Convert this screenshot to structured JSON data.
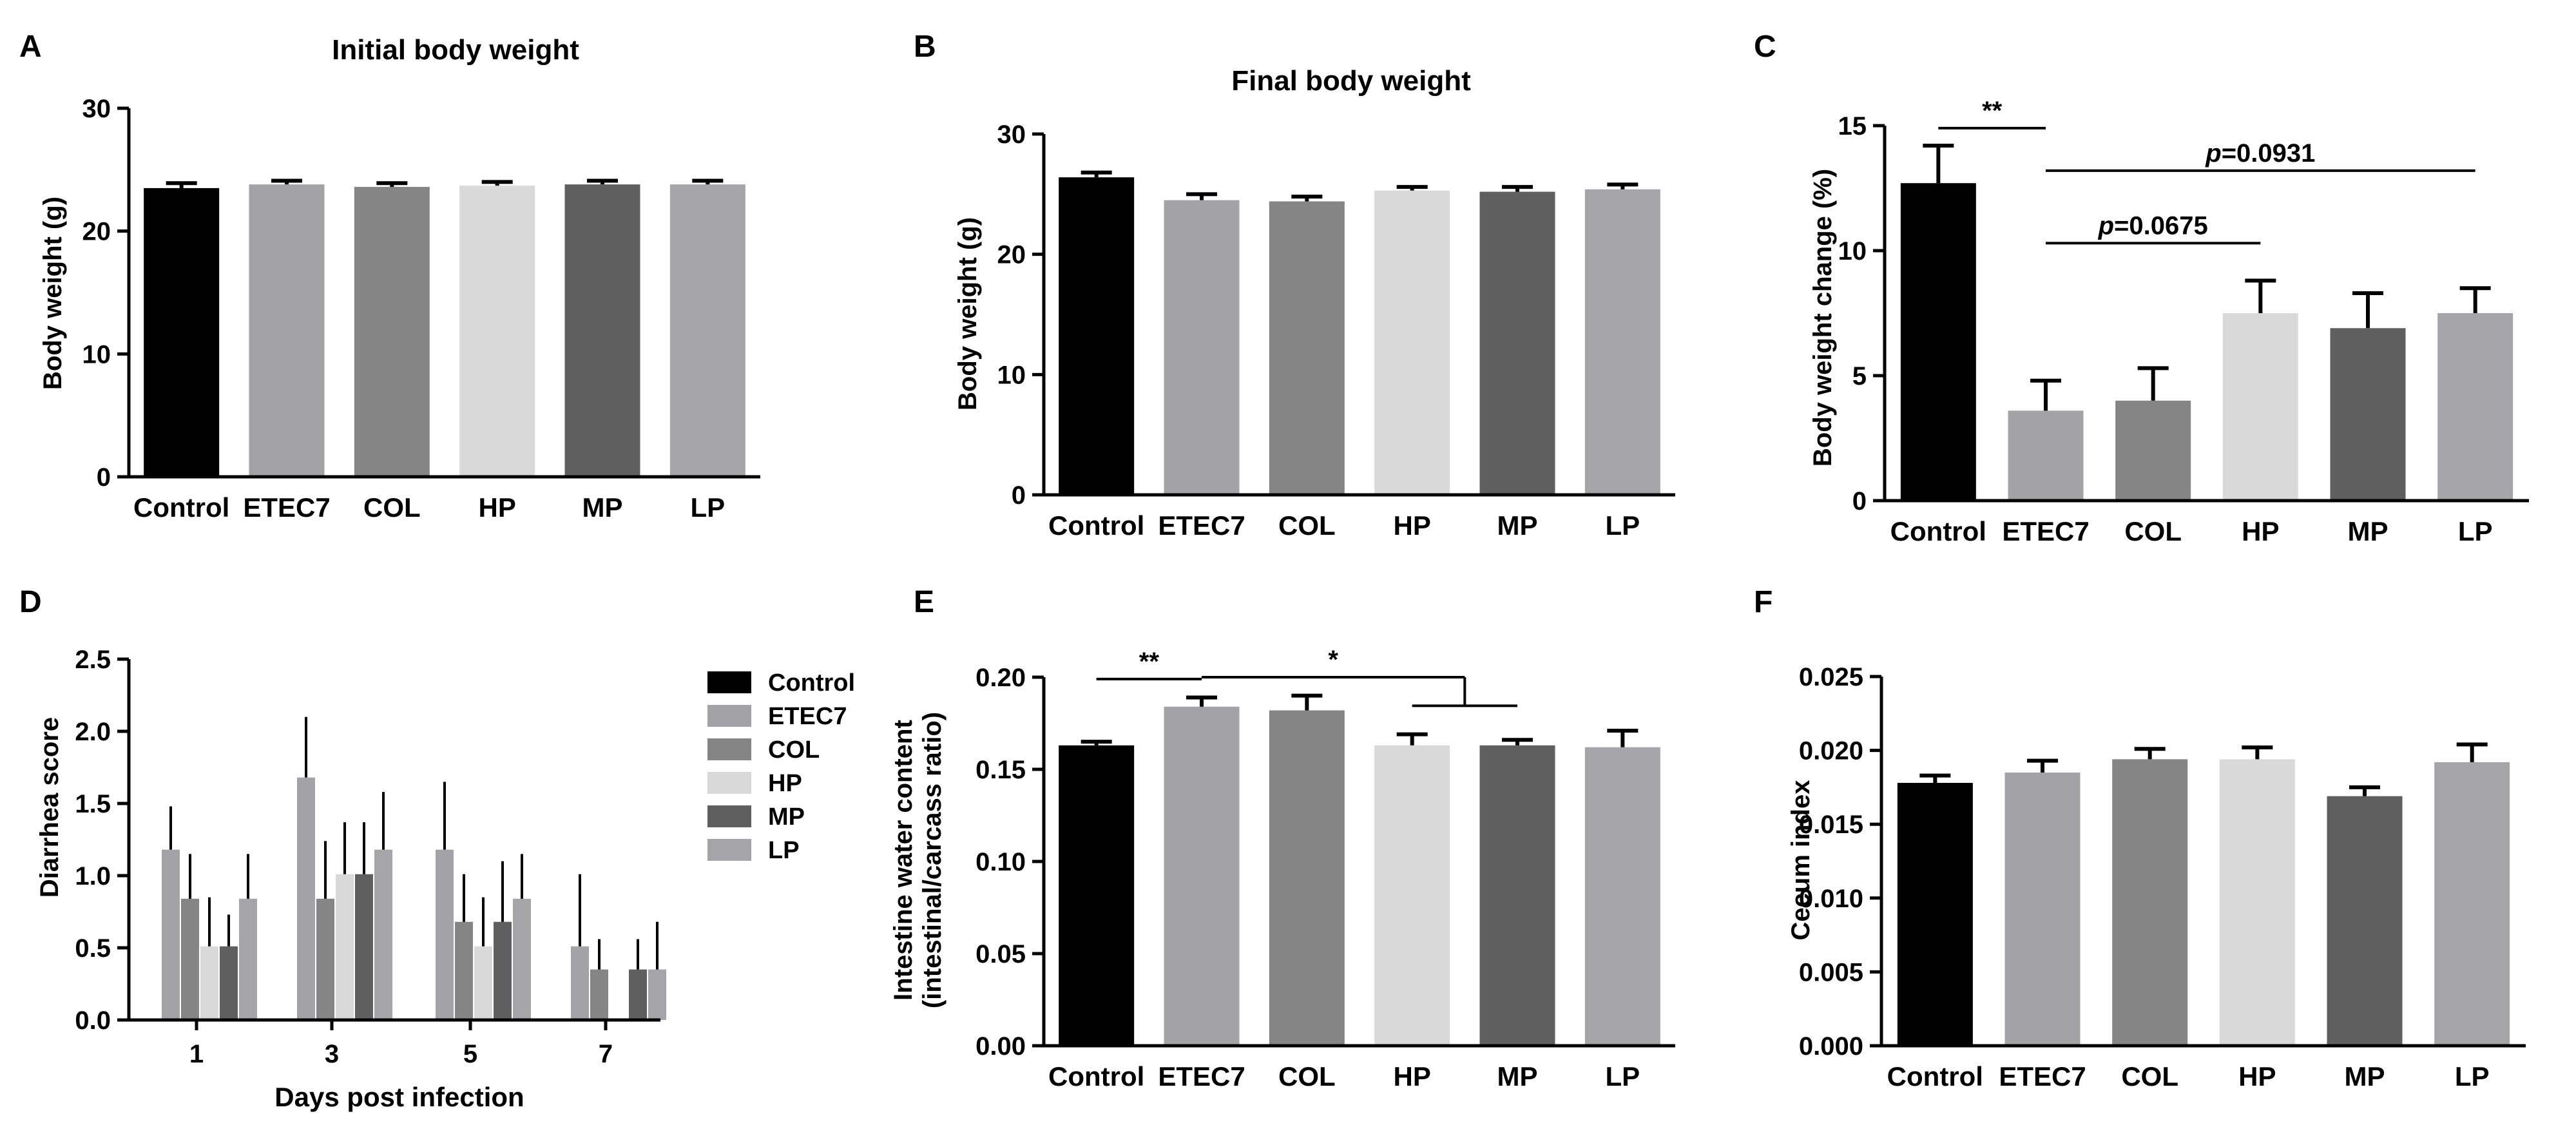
{
  "panel_letters": [
    "A",
    "B",
    "C",
    "D",
    "E",
    "F"
  ],
  "colors": {
    "Control": "#000000",
    "ETEC7": "#a3a3a7",
    "COL": "#858585",
    "HP": "#d9d9d9",
    "MP": "#5f5f5f",
    "LP": "#a5a5a9",
    "axis": "#000000"
  },
  "chart_data": [
    {
      "panel": "A",
      "type": "bar",
      "title": "Initial body weight",
      "xlabel": "",
      "ylabel": "Body weight (g)",
      "categories": [
        "Control",
        "ETEC7",
        "COL",
        "HP",
        "MP",
        "LP"
      ],
      "values": [
        23.5,
        23.8,
        23.6,
        23.7,
        23.8,
        23.8
      ],
      "errors": [
        0.4,
        0.3,
        0.3,
        0.3,
        0.3,
        0.3
      ],
      "ylim": [
        0,
        30
      ],
      "yticks": [
        0,
        10,
        20,
        30
      ],
      "ytick_labels": [
        "0",
        "10",
        "20",
        "30"
      ],
      "annotations": []
    },
    {
      "panel": "B",
      "type": "bar",
      "title": "Final body weight",
      "xlabel": "",
      "ylabel": "Body weight (g)",
      "categories": [
        "Control",
        "ETEC7",
        "COL",
        "HP",
        "MP",
        "LP"
      ],
      "values": [
        26.4,
        24.5,
        24.4,
        25.3,
        25.2,
        25.4
      ],
      "errors": [
        0.4,
        0.5,
        0.4,
        0.3,
        0.4,
        0.4
      ],
      "ylim": [
        0,
        30
      ],
      "yticks": [
        0,
        10,
        20,
        30
      ],
      "ytick_labels": [
        "0",
        "10",
        "20",
        "30"
      ],
      "annotations": []
    },
    {
      "panel": "C",
      "type": "bar",
      "title": "",
      "xlabel": "",
      "ylabel": "Body weight change (%)",
      "categories": [
        "Control",
        "ETEC7",
        "COL",
        "HP",
        "MP",
        "LP"
      ],
      "values": [
        12.7,
        3.6,
        4.0,
        7.5,
        6.9,
        7.5
      ],
      "errors": [
        1.5,
        1.2,
        1.3,
        1.3,
        1.4,
        1.0
      ],
      "ylim": [
        0,
        15
      ],
      "yticks": [
        0,
        5,
        10,
        15
      ],
      "ytick_labels": [
        "0",
        "5",
        "10",
        "15"
      ],
      "annotations": [
        {
          "from": "Control",
          "to": "ETEC7",
          "y": 14.9,
          "text": "**",
          "italic_prefix": ""
        },
        {
          "from": "ETEC7",
          "to": "LP",
          "y": 13.2,
          "text": "=0.0931",
          "italic_prefix": "p"
        },
        {
          "from": "ETEC7",
          "to": "HP",
          "y": 10.3,
          "text": "=0.0675",
          "italic_prefix": "p"
        }
      ]
    },
    {
      "panel": "D",
      "type": "bar",
      "title": "",
      "xlabel": "Days post infection",
      "ylabel": "Diarrhea score",
      "categories": [
        "1",
        "3",
        "5",
        "7"
      ],
      "ylim": [
        0,
        2.5
      ],
      "yticks": [
        0,
        0.5,
        1.0,
        1.5,
        2.0,
        2.5
      ],
      "ytick_labels": [
        "0.0",
        "0.5",
        "1.0",
        "1.5",
        "2.0",
        "2.5"
      ],
      "legend_position": "right",
      "series": [
        {
          "name": "Control",
          "values": [
            0,
            0,
            0,
            0
          ],
          "errors": [
            0,
            0,
            0,
            0
          ]
        },
        {
          "name": "ETEC7",
          "values": [
            1.18,
            1.68,
            1.18,
            0.51
          ],
          "errors": [
            0.3,
            0.42,
            0.47,
            0.5
          ]
        },
        {
          "name": "COL",
          "values": [
            0.84,
            0.84,
            0.68,
            0.35
          ],
          "errors": [
            0.31,
            0.4,
            0.33,
            0.21
          ]
        },
        {
          "name": "HP",
          "values": [
            0.51,
            1.01,
            0.51,
            0.0
          ],
          "errors": [
            0.34,
            0.36,
            0.34,
            0.0
          ]
        },
        {
          "name": "MP",
          "values": [
            0.51,
            1.01,
            0.68,
            0.35
          ],
          "errors": [
            0.22,
            0.36,
            0.42,
            0.21
          ]
        },
        {
          "name": "LP",
          "values": [
            0.84,
            1.18,
            0.84,
            0.35
          ],
          "errors": [
            0.31,
            0.4,
            0.31,
            0.33
          ]
        }
      ]
    },
    {
      "panel": "E",
      "type": "bar",
      "title": "",
      "xlabel": "",
      "ylabel": "Intestine water content",
      "ylabel2": "(intestinal/carcass ratio)",
      "categories": [
        "Control",
        "ETEC7",
        "COL",
        "HP",
        "MP",
        "LP"
      ],
      "values": [
        0.163,
        0.184,
        0.182,
        0.163,
        0.163,
        0.162
      ],
      "errors": [
        0.002,
        0.005,
        0.008,
        0.006,
        0.003,
        0.009
      ],
      "ylim": [
        0,
        0.2
      ],
      "yticks": [
        0,
        0.05,
        0.1,
        0.15,
        0.2
      ],
      "ytick_labels": [
        "0.00",
        "0.05",
        "0.10",
        "0.15",
        "0.20"
      ],
      "annotations": [
        {
          "from": "Control",
          "to": "ETEC7",
          "y": 0.199,
          "text": "**",
          "italic_prefix": ""
        },
        {
          "from": "ETEC7",
          "to": "HP-MP",
          "y": 0.2,
          "text": "*",
          "italic_prefix": "",
          "bracket": true
        }
      ]
    },
    {
      "panel": "F",
      "type": "bar",
      "title": "",
      "xlabel": "",
      "ylabel": "Cecum index",
      "categories": [
        "Control",
        "ETEC7",
        "COL",
        "HP",
        "MP",
        "LP"
      ],
      "values": [
        0.0178,
        0.0185,
        0.0194,
        0.0194,
        0.0169,
        0.0192
      ],
      "errors": [
        0.0005,
        0.0008,
        0.0007,
        0.0008,
        0.0006,
        0.0012
      ],
      "ylim": [
        0,
        0.025
      ],
      "yticks": [
        0,
        0.005,
        0.01,
        0.015,
        0.02,
        0.025
      ],
      "ytick_labels": [
        "0.000",
        "0.005",
        "0.010",
        "0.015",
        "0.020",
        "0.025"
      ],
      "annotations": []
    }
  ]
}
